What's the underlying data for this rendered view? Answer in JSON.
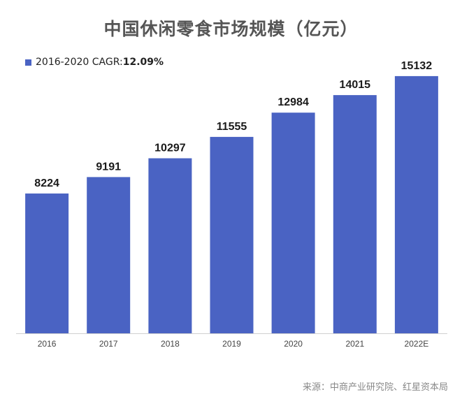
{
  "chart_data": {
    "type": "bar",
    "title": "中国休闲零食市场规模（亿元）",
    "categories": [
      "2016",
      "2017",
      "2018",
      "2019",
      "2020",
      "2021",
      "2022E"
    ],
    "series": [
      {
        "name": "2016-2020 CAGR:",
        "values": [
          8224,
          9191,
          10297,
          11555,
          12984,
          14015,
          15132
        ]
      }
    ],
    "legend": {
      "label": "2016-2020 CAGR:",
      "value": "12.09%",
      "placement": "top-left"
    },
    "data_labels": [
      "8224",
      "9191",
      "10297",
      "11555",
      "12984",
      "14015",
      "15132"
    ],
    "ylim": [
      0,
      15950
    ],
    "grid": false,
    "xlabel": "",
    "ylabel": "",
    "bar_color": "#4a63c3",
    "source": "来源：中商产业研究院、红星资本局"
  }
}
